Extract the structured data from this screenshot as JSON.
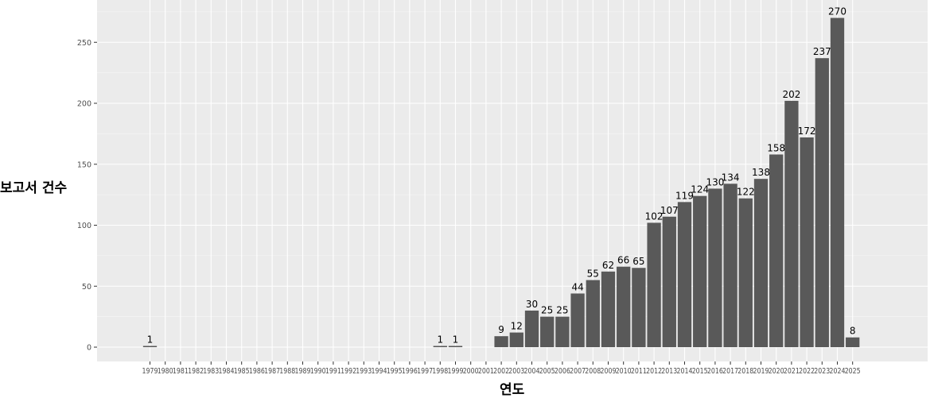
{
  "chart_data": {
    "type": "bar",
    "xlabel": "연도",
    "ylabel": "보고서 건수",
    "ylim": [
      0,
      280
    ],
    "yticks": [
      0,
      50,
      100,
      150,
      200,
      250
    ],
    "grid": true,
    "categories": [
      "1979",
      "1980",
      "1981",
      "1982",
      "1983",
      "1984",
      "1985",
      "1986",
      "1987",
      "1988",
      "1989",
      "1990",
      "1991",
      "1992",
      "1993",
      "1994",
      "1995",
      "1996",
      "1997",
      "1998",
      "1999",
      "2000",
      "2001",
      "2002",
      "2003",
      "2004",
      "2005",
      "2006",
      "2007",
      "2008",
      "2009",
      "2010",
      "2011",
      "2012",
      "2013",
      "2014",
      "2015",
      "2016",
      "2017",
      "2018",
      "2019",
      "2020",
      "2021",
      "2022",
      "2023",
      "2024",
      "2025"
    ],
    "values": [
      1,
      0,
      0,
      0,
      0,
      0,
      0,
      0,
      0,
      0,
      0,
      0,
      0,
      0,
      0,
      0,
      0,
      0,
      0,
      1,
      1,
      0,
      0,
      9,
      12,
      30,
      25,
      25,
      44,
      55,
      62,
      66,
      65,
      102,
      107,
      119,
      124,
      130,
      134,
      122,
      138,
      158,
      202,
      172,
      237,
      270,
      8
    ],
    "data_labels": [
      "1",
      "",
      "",
      "",
      "",
      "",
      "",
      "",
      "",
      "",
      "",
      "",
      "",
      "",
      "",
      "",
      "",
      "",
      "",
      "1",
      "1",
      "",
      "",
      "9",
      "12",
      "30",
      "25",
      "25",
      "44",
      "55",
      "62",
      "66",
      "65",
      "102",
      "107",
      "119",
      "124",
      "130",
      "134",
      "122",
      "138",
      "158",
      "202",
      "172",
      "237",
      "270",
      "8"
    ],
    "colors": {
      "panel": "#ebebeb",
      "grid": "#ffffff",
      "bar": "#595959",
      "text": "#4d4d4d"
    }
  }
}
